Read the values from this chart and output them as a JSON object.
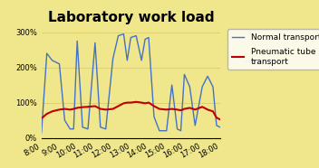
{
  "title": "Laboratory work load",
  "background_color": "#f0e68c",
  "x_ticks": [
    "8:00",
    "9:00",
    "10:00",
    "11:00",
    "12:00",
    "13:00",
    "14:00",
    "15:00",
    "16:00",
    "17:00",
    "18:00"
  ],
  "x_values": [
    8.0,
    8.3,
    8.6,
    9.0,
    9.3,
    9.6,
    9.8,
    10.0,
    10.3,
    10.6,
    11.0,
    11.3,
    11.6,
    12.0,
    12.3,
    12.6,
    12.8,
    13.0,
    13.3,
    13.6,
    13.8,
    14.0,
    14.3,
    14.6,
    15.0,
    15.3,
    15.6,
    15.8,
    16.0,
    16.3,
    16.6,
    17.0,
    17.3,
    17.6,
    17.8,
    18.0
  ],
  "normal_transport": [
    15,
    240,
    220,
    210,
    50,
    25,
    25,
    275,
    30,
    25,
    270,
    30,
    25,
    225,
    290,
    295,
    220,
    285,
    290,
    220,
    280,
    285,
    60,
    20,
    20,
    150,
    25,
    20,
    180,
    145,
    35,
    145,
    175,
    145,
    35,
    30
  ],
  "pneumatic_transport": [
    55,
    68,
    75,
    80,
    82,
    80,
    82,
    85,
    87,
    88,
    90,
    82,
    80,
    82,
    90,
    98,
    100,
    100,
    102,
    100,
    98,
    100,
    90,
    82,
    80,
    82,
    80,
    78,
    82,
    85,
    80,
    88,
    80,
    75,
    57,
    52
  ],
  "normal_color": "#4472c4",
  "pneumatic_color": "#c00000",
  "ylim": [
    0,
    320
  ],
  "xlim": [
    8.0,
    18.0
  ],
  "yticks": [
    0,
    100,
    200,
    300
  ],
  "ytick_labels": [
    "0%",
    "100%",
    "200%",
    "300%"
  ],
  "legend_normal": "Normal transport",
  "legend_pneumatic": "Pneumatic tube\ntransport",
  "title_fontsize": 11,
  "legend_fontsize": 6.5,
  "axis_fontsize": 6
}
